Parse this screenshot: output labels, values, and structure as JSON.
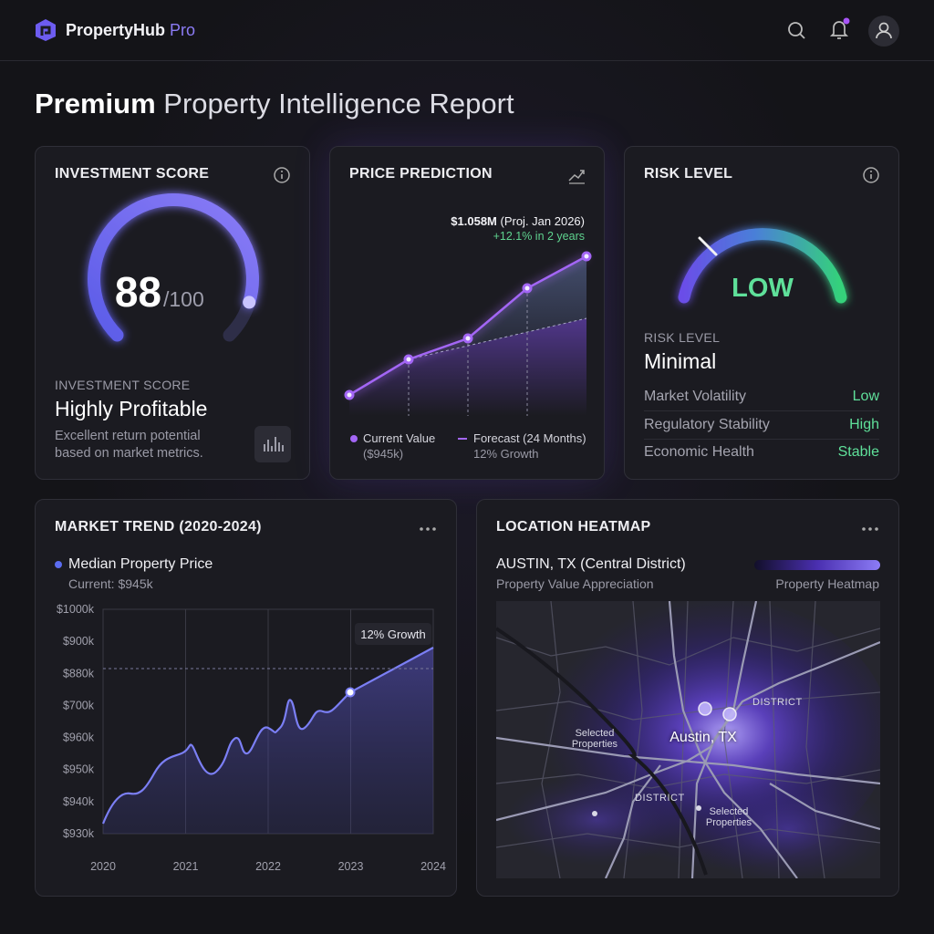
{
  "header": {
    "brand": "PropertyHub",
    "brand_suffix": "Pro"
  },
  "page_title": {
    "strong": "Premium",
    "rest": "Property Intelligence Report"
  },
  "investment_score": {
    "title": "INVESTMENT SCORE",
    "score": "88",
    "score_max": "/100",
    "label": "INVESTMENT SCORE",
    "verdict": "Highly Profitable",
    "description": "Excellent return potential based on market metrics."
  },
  "price_prediction": {
    "title": "PRICE PREDICTION",
    "projection": "$1.058M",
    "projection_note": "(Proj. Jan 2026)",
    "growth": "+12.1% in 2 years",
    "legend": [
      {
        "label": "Current Value",
        "sub": "($945k)"
      },
      {
        "label": "Forecast (24 Months)",
        "sub": "12% Growth"
      }
    ]
  },
  "risk_level": {
    "title": "RISK LEVEL",
    "gauge_label": "LOW",
    "label": "RISK LEVEL",
    "value": "Minimal",
    "factors": [
      {
        "name": "Market Volatility",
        "value": "Low"
      },
      {
        "name": "Regulatory Stability",
        "value": "High"
      },
      {
        "name": "Economic Health",
        "value": "Stable"
      }
    ]
  },
  "market_trend": {
    "title": "MARKET TREND (2020-2024)",
    "series_name": "Median Property Price",
    "current": "Current: $945k",
    "y_labels": [
      "$1000k",
      "$900k",
      "$880k",
      "$700k",
      "$960k",
      "$950k",
      "$940k",
      "$930k"
    ],
    "x_labels": [
      "2020",
      "2021",
      "2022",
      "2023",
      "2024"
    ],
    "annotation": "12% Growth"
  },
  "location_heatmap": {
    "title": "LOCATION HEATMAP",
    "location": "AUSTIN, TX (Central District)",
    "subtitle": "Property Value Appreciation",
    "legend": "Property Heatmap",
    "map_labels": [
      "Austin, TX",
      "DISTRICT",
      "DISTRICT",
      "Selected Properties",
      "Selected Properties"
    ]
  }
}
